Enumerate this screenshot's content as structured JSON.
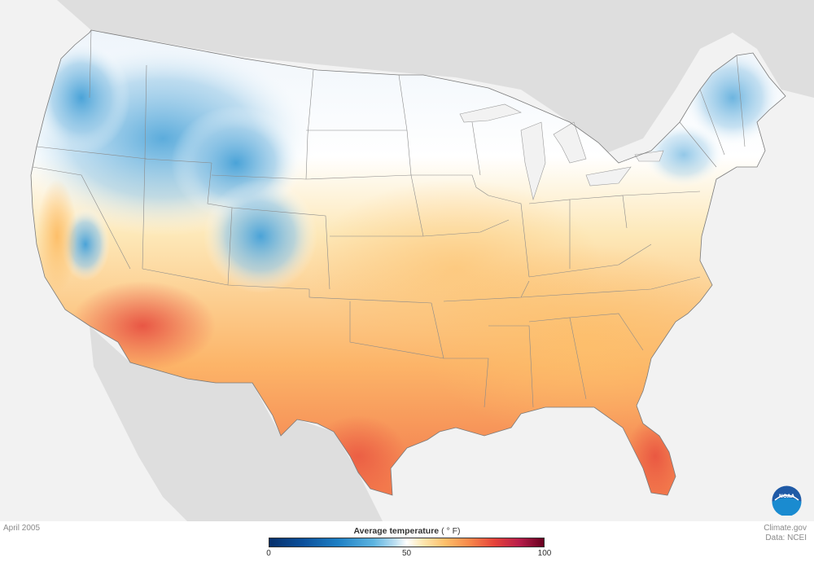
{
  "map": {
    "region": "Contiguous United States",
    "variable": "Average temperature",
    "colors": {
      "background": "#f2f2f2",
      "land_outside": "#d9d9d9",
      "cold": "#1d7fc4",
      "neutral": "#ffffff",
      "warm": "#fdbf6a",
      "hot": "#e5433a"
    }
  },
  "footer": {
    "date_label": "April 2005",
    "credit_line1": "Climate.gov",
    "credit_line2": "Data: NCEI",
    "logo_text": "NOAA"
  },
  "legend": {
    "title": "Average temperature",
    "units": "( ° F)",
    "ticks": [
      {
        "label": "0",
        "value": 0
      },
      {
        "label": "50",
        "value": 50
      },
      {
        "label": "100",
        "value": 100
      }
    ],
    "min": 0,
    "max": 100
  }
}
